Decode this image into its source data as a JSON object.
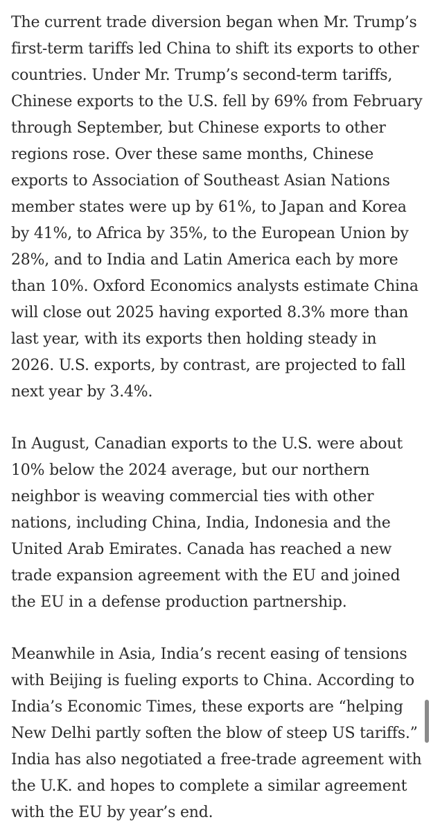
{
  "article": {
    "paragraphs": [
      "The current trade diversion began when Mr. Trump’s first-term tariffs led China to shift its exports to other countries. Under Mr. Trump’s second-term tariffs, Chinese exports to the U.S. fell by 69% from February through September, but Chinese exports to other regions rose. Over these same months, Chinese exports to Association of Southeast Asian Nations member states were up by 61%, to Japan and Korea by 41%, to Africa by 35%, to the European Union by 28%, and to India and Latin America each by more than 10%. Oxford Economics analysts estimate China will close out 2025 having exported 8.3% more than last year, with its exports then holding steady in 2026. U.S. exports, by contrast, are projected to fall next year by 3.4%.",
      "In August, Canadian exports to the U.S. were about 10% below the 2024 average, but our northern neighbor is weaving commercial ties with other nations, including China, India, Indonesia and the United Arab Emirates. Canada has reached a new trade expansion agreement with the EU and joined the EU in a defense production partnership.",
      "Meanwhile in Asia, India’s recent easing of tensions with Beijing is fueling exports to China. According to India’s Economic Times, these exports are “helping New Delhi partly soften the blow of steep US tariffs.” India has also negotiated a free-trade agreement with the U.K. and hopes to complete a similar agreement with the EU by year’s end."
    ]
  }
}
